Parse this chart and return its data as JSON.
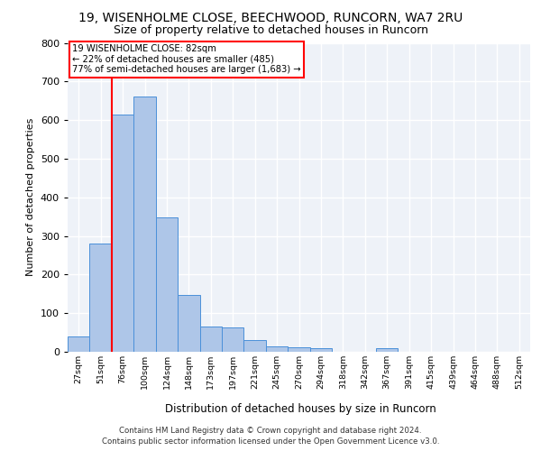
{
  "title1": "19, WISENHOLME CLOSE, BEECHWOOD, RUNCORN, WA7 2RU",
  "title2": "Size of property relative to detached houses in Runcorn",
  "xlabel": "Distribution of detached houses by size in Runcorn",
  "ylabel": "Number of detached properties",
  "categories": [
    "27sqm",
    "51sqm",
    "76sqm",
    "100sqm",
    "124sqm",
    "148sqm",
    "173sqm",
    "197sqm",
    "221sqm",
    "245sqm",
    "270sqm",
    "294sqm",
    "318sqm",
    "342sqm",
    "367sqm",
    "391sqm",
    "415sqm",
    "439sqm",
    "464sqm",
    "488sqm",
    "512sqm"
  ],
  "bar_values": [
    40,
    280,
    615,
    660,
    348,
    147,
    65,
    63,
    30,
    15,
    12,
    10,
    0,
    0,
    9,
    0,
    0,
    0,
    0,
    0,
    0
  ],
  "bar_color": "#aec6e8",
  "bar_edge_color": "#4a90d9",
  "vline_bin_index": 2,
  "annotation_text1": "19 WISENHOLME CLOSE: 82sqm",
  "annotation_text2": "← 22% of detached houses are smaller (485)",
  "annotation_text3": "77% of semi-detached houses are larger (1,683) →",
  "ylim": [
    0,
    800
  ],
  "yticks": [
    0,
    100,
    200,
    300,
    400,
    500,
    600,
    700,
    800
  ],
  "footer1": "Contains HM Land Registry data © Crown copyright and database right 2024.",
  "footer2": "Contains public sector information licensed under the Open Government Licence v3.0.",
  "bg_color": "#eef2f8",
  "grid_color": "#ffffff",
  "title1_fontsize": 10,
  "title2_fontsize": 9
}
